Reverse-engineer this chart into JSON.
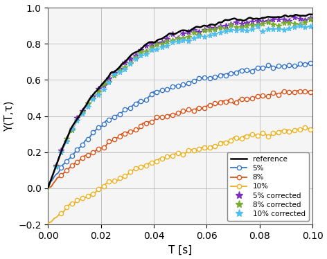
{
  "xlabel": "T [s]",
  "ylabel": "Y(T,τ)",
  "xlim": [
    0,
    0.1
  ],
  "ylim": [
    -0.2,
    1.0
  ],
  "xticks": [
    0,
    0.02,
    0.04,
    0.06,
    0.08,
    0.1
  ],
  "yticks": [
    -0.2,
    0,
    0.2,
    0.4,
    0.6,
    0.8,
    1.0
  ],
  "reference_color": "#000000",
  "color_5pct": "#3575C8",
  "color_8pct": "#D95319",
  "color_10pct": "#EDB120",
  "color_5pct_corr": "#7B2FBE",
  "color_8pct_corr": "#77AC30",
  "color_10pct_corr": "#4DBEEE",
  "figsize": [
    4.72,
    3.74
  ],
  "dpi": 100
}
